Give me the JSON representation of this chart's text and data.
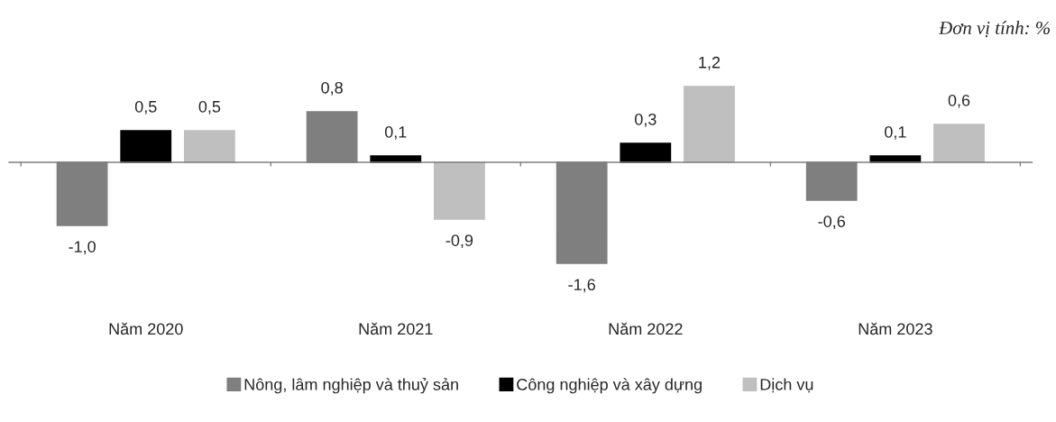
{
  "chart_data": {
    "type": "bar",
    "annotations": [
      "Đơn vị tính: %"
    ],
    "categories": [
      "Năm 2020",
      "Năm 2021",
      "Năm 2022",
      "Năm 2023"
    ],
    "series": [
      {
        "name": "Nông, lâm nghiệp và thuỷ sản",
        "color": "#7f7f7f",
        "values": [
          -1.0,
          0.8,
          -1.6,
          -0.6
        ],
        "value_labels": [
          "-1,0",
          "0,8",
          "-1,6",
          "-0,6"
        ]
      },
      {
        "name": "Công nghiệp và xây dựng",
        "color": "#000000",
        "values": [
          0.5,
          0.1,
          0.3,
          0.1
        ],
        "value_labels": [
          "0,5",
          "0,1",
          "0,3",
          "0,1"
        ]
      },
      {
        "name": "Dịch vụ",
        "color": "#bfbfbf",
        "values": [
          0.5,
          -0.9,
          1.2,
          0.6
        ],
        "value_labels": [
          "0,5",
          "-0,9",
          "1,2",
          "0,6"
        ]
      }
    ],
    "legend": "bottom",
    "grid": false
  }
}
